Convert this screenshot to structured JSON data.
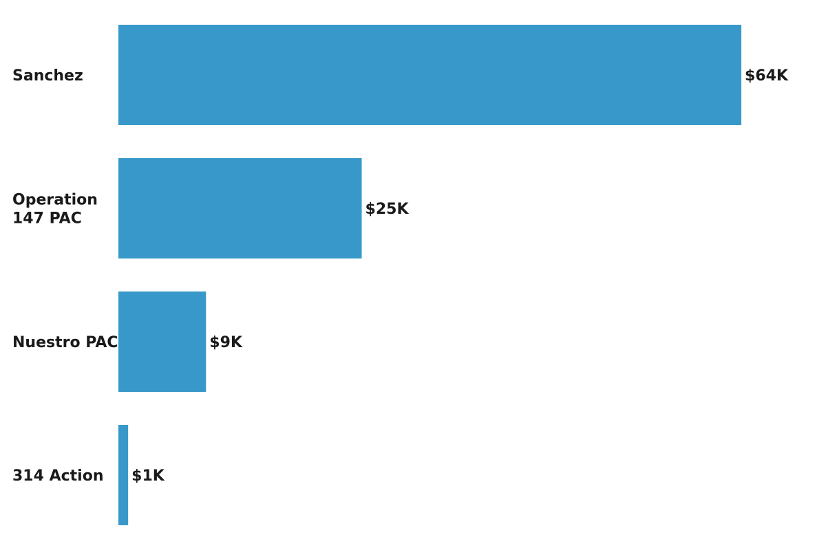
{
  "chart_data": {
    "type": "bar",
    "orientation": "horizontal",
    "categories": [
      [
        "Sanchez"
      ],
      [
        "Operation",
        "147 PAC"
      ],
      [
        "Nuestro PAC"
      ],
      [
        "314 Action"
      ]
    ],
    "values": [
      64,
      25,
      9,
      1
    ],
    "value_labels": [
      "$64K",
      "$25K",
      "$9K",
      "$1K"
    ],
    "title": "",
    "xlabel": "",
    "ylabel": "",
    "xlim": [
      0,
      64
    ],
    "grid": false,
    "legend": "none",
    "colors": {
      "bar": "#3898c9"
    }
  }
}
